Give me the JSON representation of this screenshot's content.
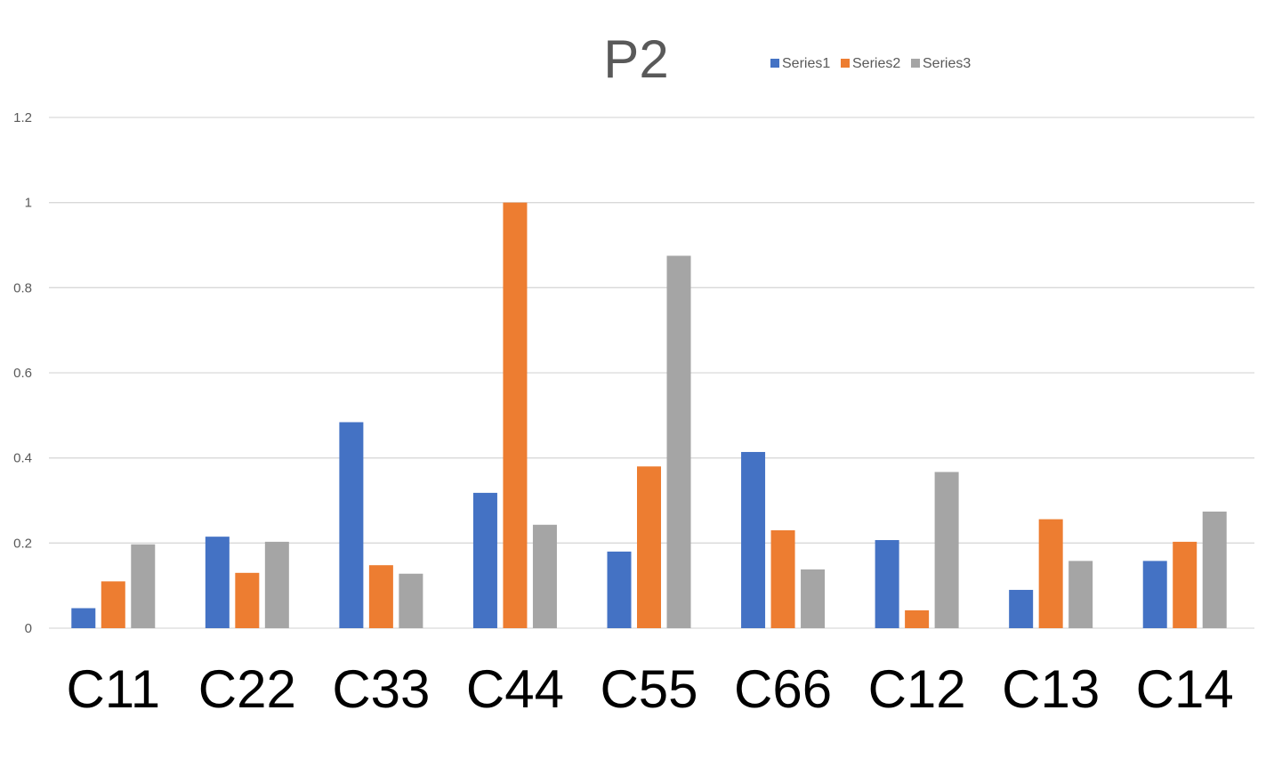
{
  "chart_data": {
    "type": "bar",
    "title": "P2",
    "xlabel": "",
    "ylabel": "",
    "categories": [
      "C11",
      "C22",
      "C33",
      "C44",
      "C55",
      "C66",
      "C12",
      "C13",
      "C14"
    ],
    "series": [
      {
        "name": "Series1",
        "color": "#4472c4",
        "values": [
          0.047,
          0.215,
          0.484,
          0.318,
          0.18,
          0.414,
          0.207,
          0.09,
          0.158
        ]
      },
      {
        "name": "Series2",
        "color": "#ed7d31",
        "values": [
          0.11,
          0.13,
          0.148,
          1.0,
          0.38,
          0.23,
          0.042,
          0.256,
          0.203
        ]
      },
      {
        "name": "Series3",
        "color": "#a5a5a5",
        "values": [
          0.197,
          0.203,
          0.128,
          0.243,
          0.875,
          0.138,
          0.367,
          0.158,
          0.274
        ]
      }
    ],
    "ylim": [
      0,
      1.2
    ],
    "yticks": [
      "0",
      "0.2",
      "0.4",
      "0.6",
      "0.8",
      "1",
      "1.2"
    ],
    "grid": true,
    "legend_position": "top"
  }
}
